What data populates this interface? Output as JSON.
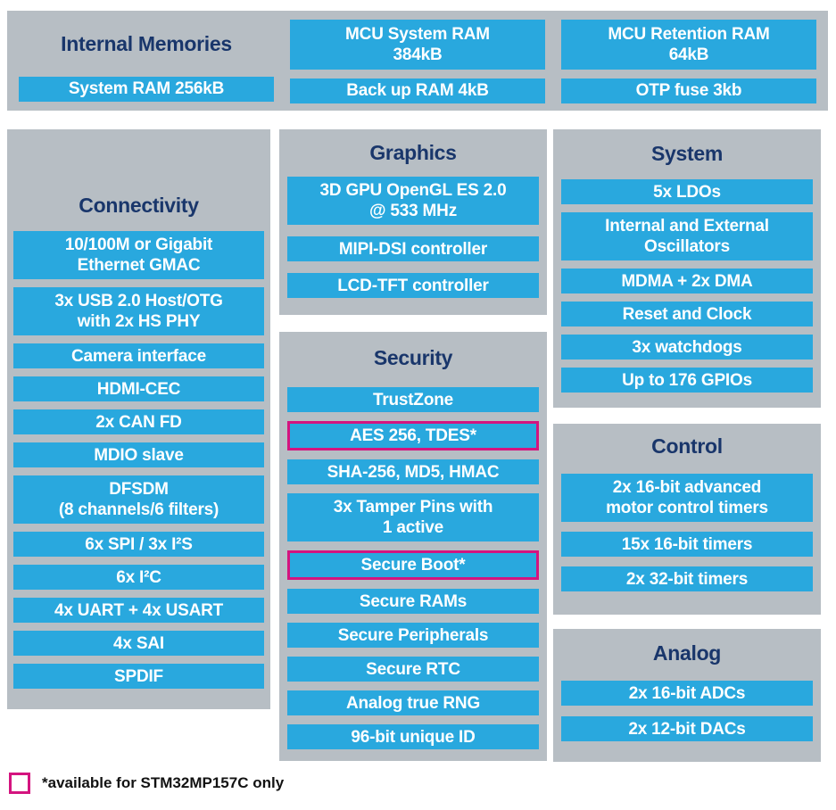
{
  "colors": {
    "panel-bg": "#b7bec4",
    "block-bg": "#29a8de",
    "title-color": "#19366b",
    "highlight": "#d4147f"
  },
  "memories": {
    "title": "Internal Memories",
    "blocks": [
      "System RAM 256kB",
      "MCU System RAM\n384kB",
      "Back up RAM 4kB",
      "MCU Retention RAM\n64kB",
      "OTP fuse 3kb"
    ]
  },
  "connectivity": {
    "title": "Connectivity",
    "items": [
      "10/100M or Gigabit\nEthernet GMAC",
      "3x USB 2.0 Host/OTG\nwith 2x HS PHY",
      "Camera interface",
      "HDMI-CEC",
      "2x CAN FD",
      "MDIO slave",
      "DFSDM\n(8 channels/6 filters)",
      "6x SPI / 3x I²S",
      "6x I²C",
      "4x UART + 4x USART",
      "4x SAI",
      "SPDIF"
    ]
  },
  "graphics": {
    "title": "Graphics",
    "items": [
      "3D GPU OpenGL ES 2.0\n@ 533 MHz",
      "MIPI-DSI controller",
      "LCD-TFT controller"
    ]
  },
  "security": {
    "title": "Security",
    "items": [
      {
        "label": "TrustZone",
        "highlight": false
      },
      {
        "label": "AES 256, TDES*",
        "highlight": true
      },
      {
        "label": "SHA-256, MD5, HMAC",
        "highlight": false
      },
      {
        "label": "3x Tamper Pins with\n1 active",
        "highlight": false
      },
      {
        "label": "Secure Boot*",
        "highlight": true
      },
      {
        "label": "Secure RAMs",
        "highlight": false
      },
      {
        "label": "Secure Peripherals",
        "highlight": false
      },
      {
        "label": "Secure RTC",
        "highlight": false
      },
      {
        "label": "Analog true RNG",
        "highlight": false
      },
      {
        "label": "96-bit unique ID",
        "highlight": false
      }
    ]
  },
  "system": {
    "title": "System",
    "items": [
      "5x LDOs",
      "Internal and External\nOscillators",
      "MDMA + 2x DMA",
      "Reset and Clock",
      "3x watchdogs",
      "Up to 176 GPIOs"
    ]
  },
  "control": {
    "title": "Control",
    "items": [
      "2x 16-bit advanced\nmotor control timers",
      "15x 16-bit timers",
      "2x 32-bit timers"
    ]
  },
  "analog": {
    "title": "Analog",
    "items": [
      "2x 16-bit ADCs",
      "2x 12-bit DACs"
    ]
  },
  "legend": {
    "note": "*available for STM32MP157C only"
  }
}
